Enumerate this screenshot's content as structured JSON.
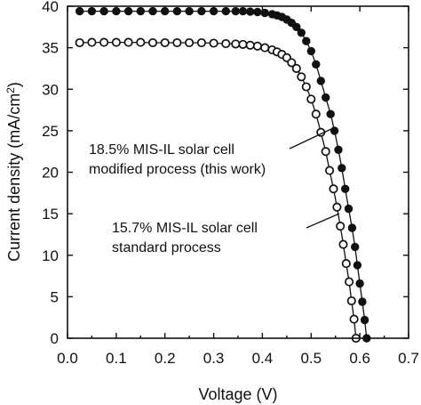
{
  "chart_data": {
    "type": "line",
    "xlabel": "Voltage (V)",
    "ylabel_main": "Current density (mA/cm",
    "ylabel_sup": "2",
    "ylabel_close": ")",
    "xlim": [
      0.0,
      0.7
    ],
    "ylim": [
      0,
      40
    ],
    "x_ticks": [
      "0.0",
      "0.1",
      "0.2",
      "0.3",
      "0.4",
      "0.5",
      "0.6",
      "0.7"
    ],
    "y_ticks": [
      "0",
      "5",
      "10",
      "15",
      "20",
      "25",
      "30",
      "35",
      "40"
    ],
    "grid": false,
    "annotations": [
      {
        "lines": [
          "18.5% MIS-IL solar cell",
          "modified process (this work)"
        ]
      },
      {
        "lines": [
          "15.7% MIS-IL solar cell",
          "standard process"
        ]
      }
    ],
    "series": [
      {
        "marker": "filled-circle",
        "marker_color": "#111111",
        "points": [
          [
            0.025,
            39.4
          ],
          [
            0.05,
            39.4
          ],
          [
            0.075,
            39.4
          ],
          [
            0.1,
            39.4
          ],
          [
            0.125,
            39.4
          ],
          [
            0.15,
            39.4
          ],
          [
            0.175,
            39.4
          ],
          [
            0.2,
            39.4
          ],
          [
            0.225,
            39.4
          ],
          [
            0.25,
            39.4
          ],
          [
            0.275,
            39.4
          ],
          [
            0.3,
            39.4
          ],
          [
            0.325,
            39.4
          ],
          [
            0.345,
            39.4
          ],
          [
            0.36,
            39.4
          ],
          [
            0.375,
            39.35
          ],
          [
            0.39,
            39.3
          ],
          [
            0.405,
            39.2
          ],
          [
            0.42,
            39.05
          ],
          [
            0.43,
            38.9
          ],
          [
            0.44,
            38.7
          ],
          [
            0.45,
            38.4
          ],
          [
            0.46,
            38.0
          ],
          [
            0.47,
            37.5
          ],
          [
            0.48,
            36.8
          ],
          [
            0.49,
            35.8
          ],
          [
            0.5,
            34.6
          ],
          [
            0.51,
            33.0
          ],
          [
            0.52,
            31.0
          ],
          [
            0.53,
            29.0
          ],
          [
            0.54,
            27.0
          ],
          [
            0.548,
            25.0
          ],
          [
            0.556,
            22.7
          ],
          [
            0.563,
            20.5
          ],
          [
            0.57,
            18.0
          ],
          [
            0.577,
            15.6
          ],
          [
            0.584,
            13.3
          ],
          [
            0.59,
            11.0
          ],
          [
            0.595,
            8.8
          ],
          [
            0.6,
            6.6
          ],
          [
            0.605,
            4.4
          ],
          [
            0.61,
            2.2
          ],
          [
            0.614,
            0.0
          ]
        ]
      },
      {
        "marker": "open-circle",
        "marker_color": "#111111",
        "points": [
          [
            0.025,
            35.6
          ],
          [
            0.05,
            35.65
          ],
          [
            0.075,
            35.65
          ],
          [
            0.1,
            35.65
          ],
          [
            0.125,
            35.65
          ],
          [
            0.15,
            35.65
          ],
          [
            0.175,
            35.6
          ],
          [
            0.2,
            35.6
          ],
          [
            0.225,
            35.6
          ],
          [
            0.25,
            35.6
          ],
          [
            0.275,
            35.6
          ],
          [
            0.3,
            35.55
          ],
          [
            0.325,
            35.5
          ],
          [
            0.345,
            35.45
          ],
          [
            0.36,
            35.4
          ],
          [
            0.375,
            35.3
          ],
          [
            0.39,
            35.2
          ],
          [
            0.405,
            35.0
          ],
          [
            0.42,
            34.75
          ],
          [
            0.43,
            34.5
          ],
          [
            0.44,
            34.2
          ],
          [
            0.45,
            33.8
          ],
          [
            0.46,
            33.2
          ],
          [
            0.47,
            32.5
          ],
          [
            0.48,
            31.5
          ],
          [
            0.49,
            30.3
          ],
          [
            0.5,
            28.8
          ],
          [
            0.51,
            27.0
          ],
          [
            0.52,
            24.8
          ],
          [
            0.53,
            22.5
          ],
          [
            0.538,
            20.2
          ],
          [
            0.546,
            18.0
          ],
          [
            0.553,
            15.8
          ],
          [
            0.56,
            13.5
          ],
          [
            0.566,
            11.3
          ],
          [
            0.572,
            9.0
          ],
          [
            0.578,
            6.8
          ],
          [
            0.583,
            4.5
          ],
          [
            0.588,
            2.3
          ],
          [
            0.592,
            0.0
          ]
        ]
      }
    ]
  }
}
